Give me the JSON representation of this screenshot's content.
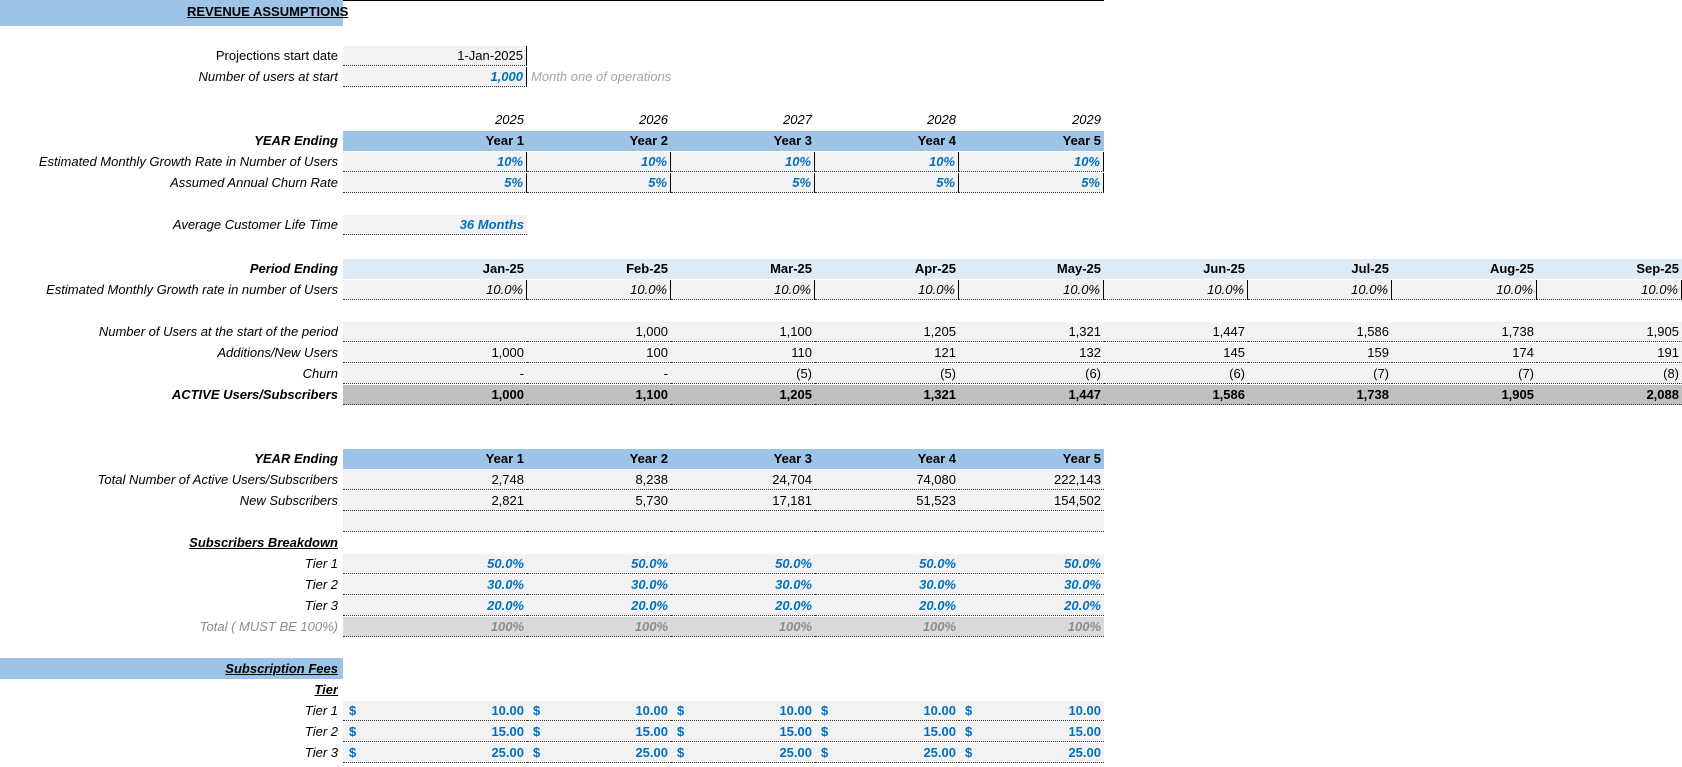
{
  "title": "REVENUE ASSUMPTIONS",
  "start": {
    "date_label": "Projections  start date",
    "date_value": "1-Jan-2025",
    "users_label": "Number of users at start",
    "users_value": "1,000",
    "users_note": "Month one of operations"
  },
  "years_row": [
    "2025",
    "2026",
    "2027",
    "2028",
    "2029"
  ],
  "year_ending_label": "YEAR Ending",
  "year_labels": [
    "Year 1",
    "Year 2",
    "Year 3",
    "Year 4",
    "Year 5"
  ],
  "growth": {
    "label": "Estimated Monthly Growth Rate in Number of Users",
    "values": [
      "10%",
      "10%",
      "10%",
      "10%",
      "10%"
    ]
  },
  "churn_rate": {
    "label": "Assumed Annual Churn Rate",
    "values": [
      "5%",
      "5%",
      "5%",
      "5%",
      "5%"
    ]
  },
  "lifetime": {
    "label": "Average Customer Life Time",
    "value": "36 Months"
  },
  "period": {
    "label": "Period Ending",
    "months": [
      "Jan-25",
      "Feb-25",
      "Mar-25",
      "Apr-25",
      "May-25",
      "Jun-25",
      "Jul-25",
      "Aug-25",
      "Sep-25"
    ],
    "growth_label": "Estimated Monthly Growth rate in number of Users",
    "growth": [
      "10.0%",
      "10.0%",
      "10.0%",
      "10.0%",
      "10.0%",
      "10.0%",
      "10.0%",
      "10.0%",
      "10.0%"
    ]
  },
  "users": {
    "start_label": "Number of Users at the start of the period",
    "start": [
      "",
      "1,000",
      "1,100",
      "1,205",
      "1,321",
      "1,447",
      "1,586",
      "1,738",
      "1,905"
    ],
    "additions_label": "Additions/New Users",
    "additions": [
      "1,000",
      "100",
      "110",
      "121",
      "132",
      "145",
      "159",
      "174",
      "191"
    ],
    "churn_label": "Churn",
    "churn": [
      "-",
      "-",
      "(5)",
      "(5)",
      "(6)",
      "(6)",
      "(7)",
      "(7)",
      "(8)"
    ],
    "active_label": "ACTIVE Users/Subscribers",
    "active": [
      "1,000",
      "1,100",
      "1,205",
      "1,321",
      "1,447",
      "1,586",
      "1,738",
      "1,905",
      "2,088"
    ]
  },
  "annual": {
    "label": "YEAR Ending",
    "years": [
      "Year 1",
      "Year 2",
      "Year 3",
      "Year 4",
      "Year 5"
    ],
    "total_label": "Total Number of Active Users/Subscribers",
    "total": [
      "2,748",
      "8,238",
      "24,704",
      "74,080",
      "222,143"
    ],
    "new_label": "New  Subscribers",
    "new": [
      "2,821",
      "5,730",
      "17,181",
      "51,523",
      "154,502"
    ]
  },
  "breakdown": {
    "label": "Subscribers Breakdown",
    "tiers": [
      {
        "label": "Tier 1",
        "values": [
          "50.0%",
          "50.0%",
          "50.0%",
          "50.0%",
          "50.0%"
        ]
      },
      {
        "label": "Tier 2",
        "values": [
          "30.0%",
          "30.0%",
          "30.0%",
          "30.0%",
          "30.0%"
        ]
      },
      {
        "label": "Tier 3",
        "values": [
          "20.0%",
          "20.0%",
          "20.0%",
          "20.0%",
          "20.0%"
        ]
      }
    ],
    "total_label": "Total ( MUST BE 100%)",
    "total": [
      "100%",
      "100%",
      "100%",
      "100%",
      "100%"
    ]
  },
  "fees": {
    "label": "Subscription Fees",
    "tier_header": "Tier",
    "currency": "$",
    "tiers": [
      {
        "label": "Tier 1",
        "values": [
          "10.00",
          "10.00",
          "10.00",
          "10.00",
          "10.00"
        ]
      },
      {
        "label": "Tier 2",
        "values": [
          "15.00",
          "15.00",
          "15.00",
          "15.00",
          "15.00"
        ]
      },
      {
        "label": "Tier 3",
        "values": [
          "25.00",
          "25.00",
          "25.00",
          "25.00",
          "25.00"
        ]
      }
    ]
  }
}
